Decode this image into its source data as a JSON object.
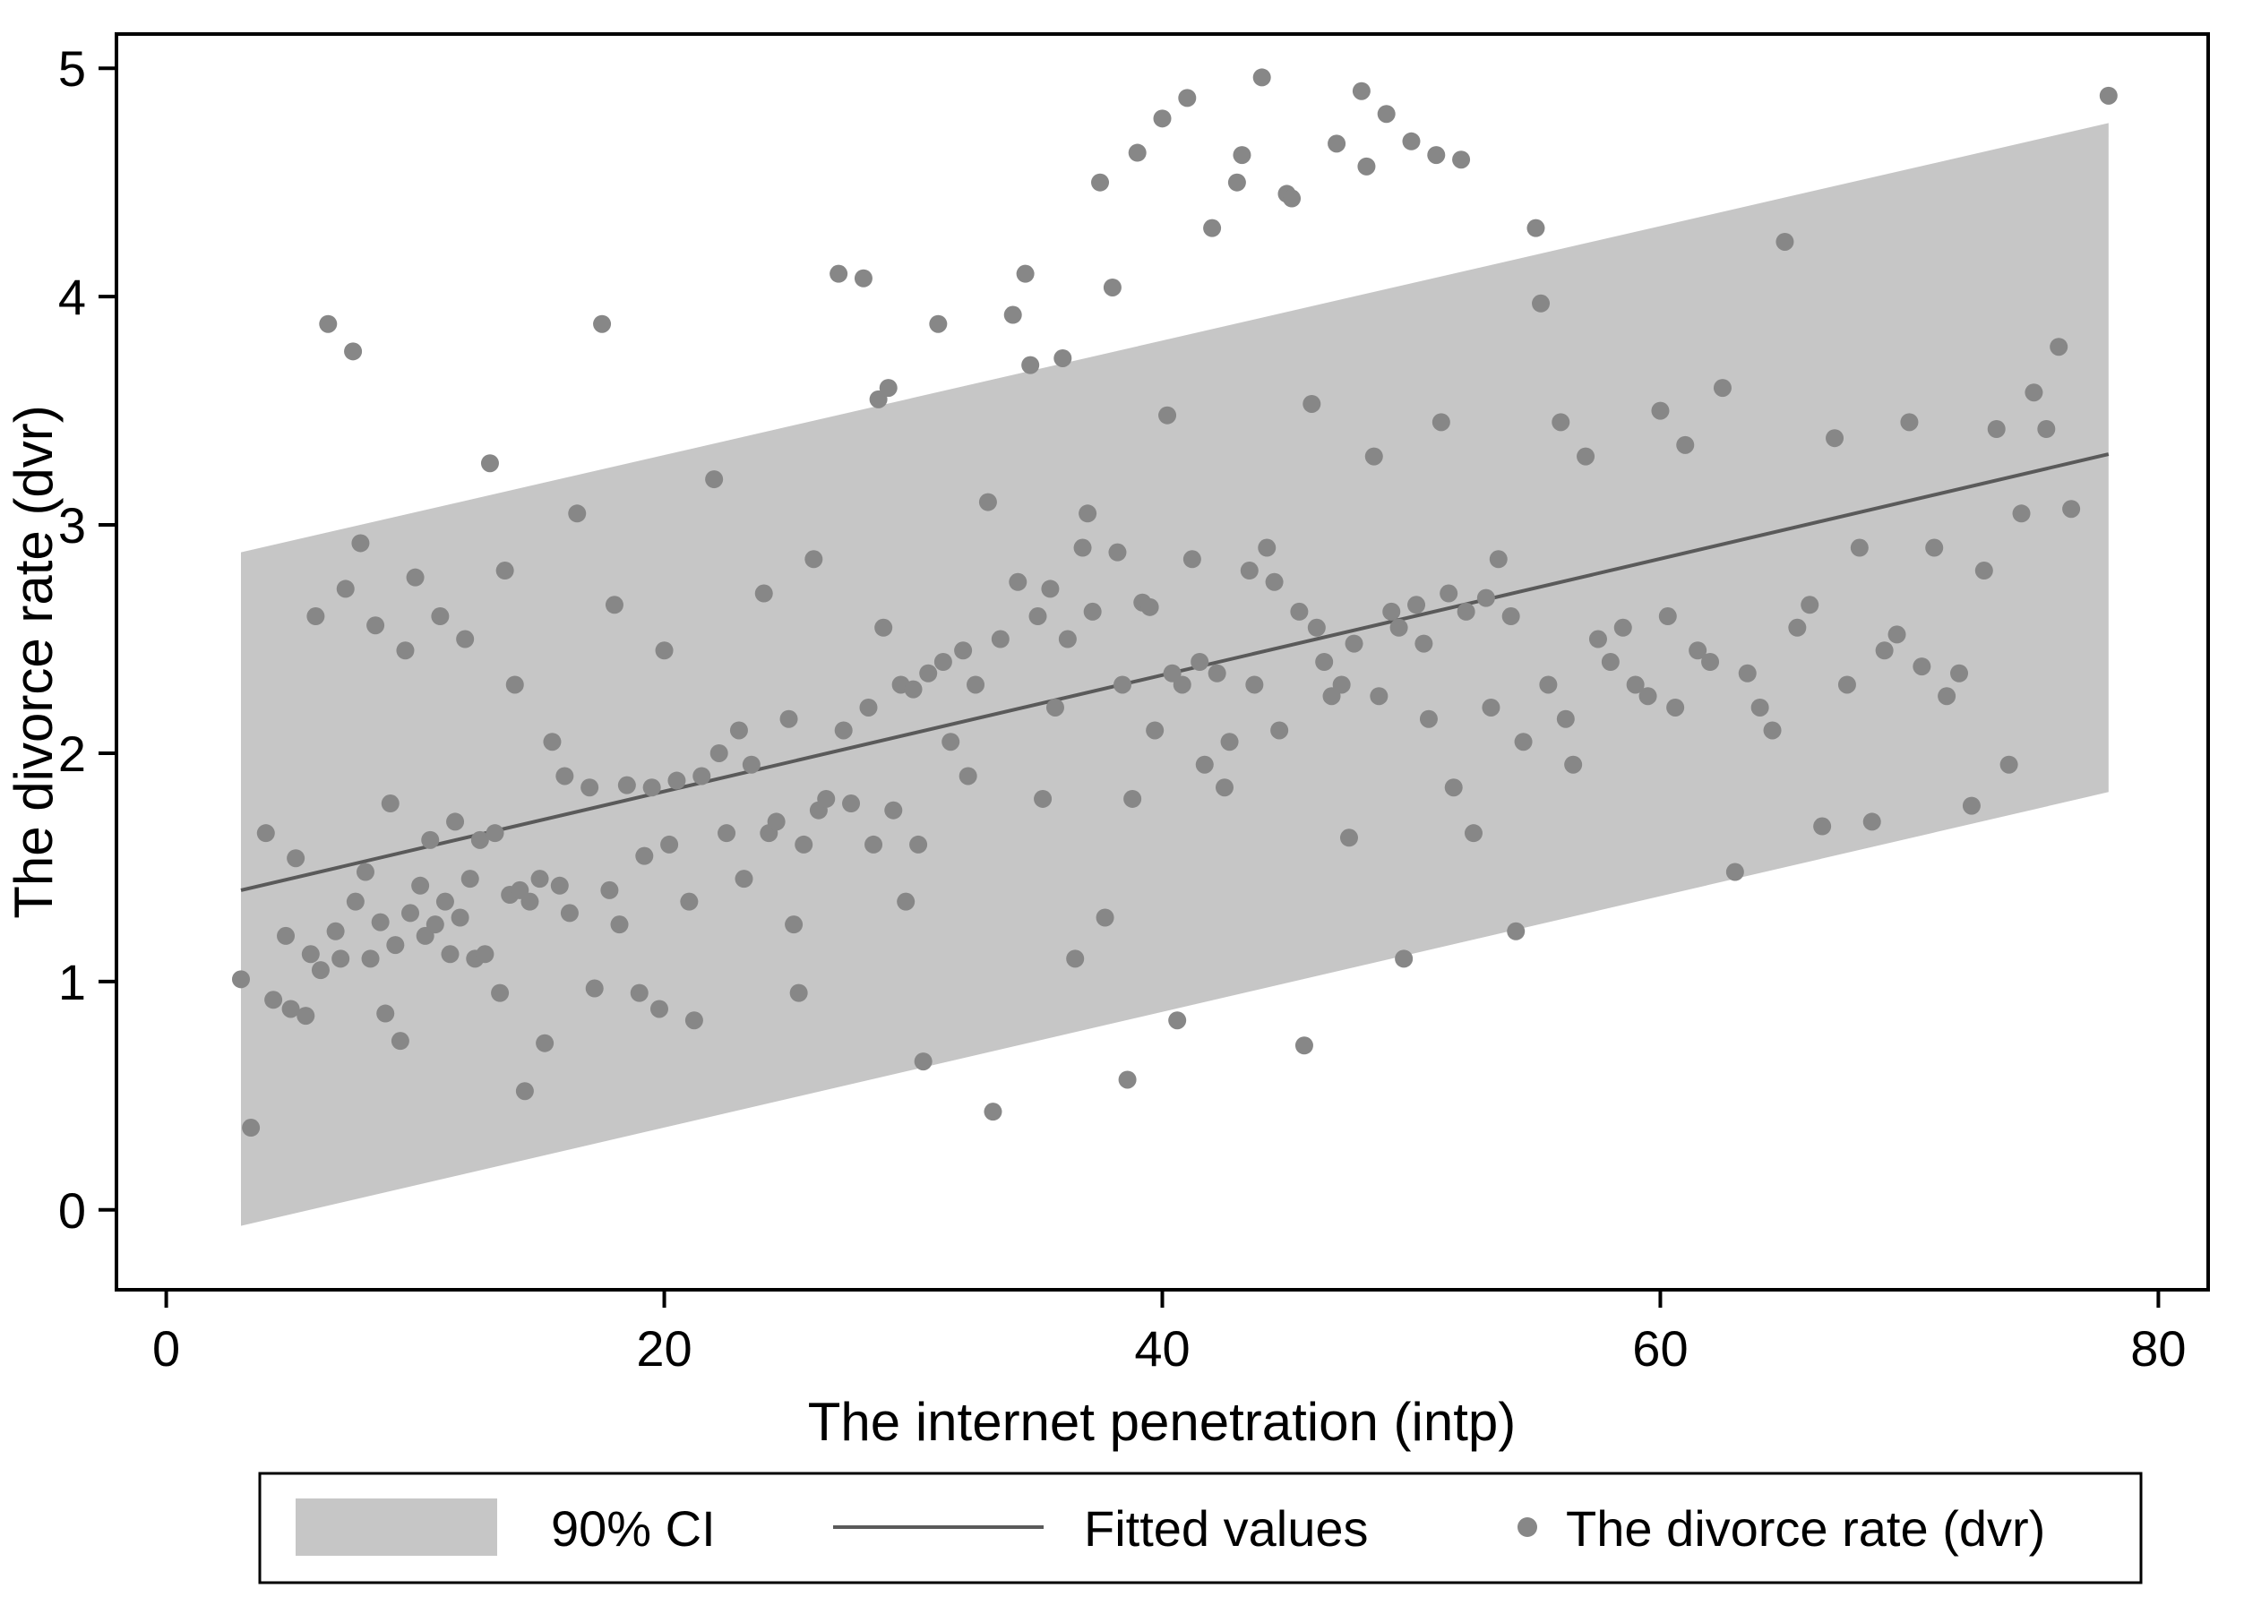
{
  "chart_data": {
    "type": "scatter",
    "title": "",
    "xlabel": "The internet penetration (intp)",
    "ylabel": "The divorce rate (dvr)",
    "xlim": [
      -2,
      82
    ],
    "ylim": [
      -0.35,
      5.15
    ],
    "x_ticks": [
      0,
      20,
      40,
      60,
      80
    ],
    "y_ticks": [
      0,
      1,
      2,
      3,
      4,
      5
    ],
    "grid": false,
    "legend_position": "bottom",
    "colors": {
      "ci_band": "#c6c6c6",
      "fitted_line": "#5a5a5a",
      "points": "#878787",
      "frame": "#000000"
    },
    "ci_band": {
      "label": "90% CI",
      "x": [
        3,
        78
      ],
      "upper": [
        2.88,
        4.76
      ],
      "lower": [
        -0.07,
        1.83
      ]
    },
    "fitted": {
      "label": "Fitted values",
      "x": [
        3,
        78
      ],
      "y": [
        1.4,
        3.31
      ]
    },
    "points_label": "The divorce rate (dvr)",
    "points": [
      [
        3,
        1.01
      ],
      [
        3.4,
        0.36
      ],
      [
        4,
        1.65
      ],
      [
        4.3,
        0.92
      ],
      [
        4.8,
        1.2
      ],
      [
        5,
        0.88
      ],
      [
        5.2,
        1.54
      ],
      [
        5.6,
        0.85
      ],
      [
        5.8,
        1.12
      ],
      [
        6,
        2.6
      ],
      [
        6.2,
        1.05
      ],
      [
        6.5,
        3.88
      ],
      [
        6.8,
        1.22
      ],
      [
        7,
        1.1
      ],
      [
        7.2,
        2.72
      ],
      [
        7.5,
        3.76
      ],
      [
        7.6,
        1.35
      ],
      [
        7.8,
        2.92
      ],
      [
        8,
        1.48
      ],
      [
        8.2,
        1.1
      ],
      [
        8.4,
        2.56
      ],
      [
        8.6,
        1.26
      ],
      [
        8.8,
        0.86
      ],
      [
        9,
        1.78
      ],
      [
        9.2,
        1.16
      ],
      [
        9.4,
        0.74
      ],
      [
        9.6,
        2.45
      ],
      [
        9.8,
        1.3
      ],
      [
        10,
        2.77
      ],
      [
        10.2,
        1.42
      ],
      [
        10.4,
        1.2
      ],
      [
        10.6,
        1.62
      ],
      [
        10.8,
        1.25
      ],
      [
        11,
        2.6
      ],
      [
        11.2,
        1.35
      ],
      [
        11.4,
        1.12
      ],
      [
        11.6,
        1.7
      ],
      [
        11.8,
        1.28
      ],
      [
        12,
        2.5
      ],
      [
        12.2,
        1.45
      ],
      [
        12.4,
        1.1
      ],
      [
        12.6,
        1.62
      ],
      [
        12.8,
        1.12
      ],
      [
        13,
        3.27
      ],
      [
        13.2,
        1.65
      ],
      [
        13.4,
        0.95
      ],
      [
        13.6,
        2.8
      ],
      [
        13.8,
        1.38
      ],
      [
        14,
        2.3
      ],
      [
        14.2,
        1.4
      ],
      [
        14.4,
        0.52
      ],
      [
        14.6,
        1.35
      ],
      [
        15,
        1.45
      ],
      [
        15.2,
        0.73
      ],
      [
        15.5,
        2.05
      ],
      [
        15.8,
        1.42
      ],
      [
        16,
        1.9
      ],
      [
        16.2,
        1.3
      ],
      [
        16.5,
        3.05
      ],
      [
        17,
        1.85
      ],
      [
        17.2,
        0.97
      ],
      [
        17.5,
        3.88
      ],
      [
        17.8,
        1.4
      ],
      [
        18,
        2.65
      ],
      [
        18.2,
        1.25
      ],
      [
        18.5,
        1.86
      ],
      [
        19,
        0.95
      ],
      [
        19.2,
        1.55
      ],
      [
        19.5,
        1.85
      ],
      [
        19.8,
        0.88
      ],
      [
        20,
        2.45
      ],
      [
        20.2,
        1.6
      ],
      [
        20.5,
        1.88
      ],
      [
        21,
        1.35
      ],
      [
        21.2,
        0.83
      ],
      [
        21.5,
        1.9
      ],
      [
        22,
        3.2
      ],
      [
        22.2,
        2.0
      ],
      [
        22.5,
        1.65
      ],
      [
        23,
        2.1
      ],
      [
        23.2,
        1.45
      ],
      [
        23.5,
        1.95
      ],
      [
        24,
        2.7
      ],
      [
        24.2,
        1.65
      ],
      [
        24.5,
        1.7
      ],
      [
        25,
        2.15
      ],
      [
        25.2,
        1.25
      ],
      [
        25.4,
        0.95
      ],
      [
        25.6,
        1.6
      ],
      [
        26,
        2.85
      ],
      [
        26.2,
        1.75
      ],
      [
        26.5,
        1.8
      ],
      [
        27,
        4.1
      ],
      [
        27.2,
        2.1
      ],
      [
        27.5,
        1.78
      ],
      [
        28,
        4.08
      ],
      [
        28.2,
        2.2
      ],
      [
        28.4,
        1.6
      ],
      [
        28.6,
        3.55
      ],
      [
        28.8,
        2.55
      ],
      [
        29,
        3.6
      ],
      [
        29.2,
        1.75
      ],
      [
        29.5,
        2.3
      ],
      [
        29.7,
        1.35
      ],
      [
        30,
        2.28
      ],
      [
        30.2,
        1.6
      ],
      [
        30.4,
        0.65
      ],
      [
        30.6,
        2.35
      ],
      [
        31,
        3.88
      ],
      [
        31.2,
        2.4
      ],
      [
        31.5,
        2.05
      ],
      [
        32,
        2.45
      ],
      [
        32.2,
        1.9
      ],
      [
        32.5,
        2.3
      ],
      [
        33,
        3.1
      ],
      [
        33.2,
        0.43
      ],
      [
        33.5,
        2.5
      ],
      [
        34,
        3.92
      ],
      [
        34.2,
        2.75
      ],
      [
        34.5,
        4.1
      ],
      [
        34.7,
        3.7
      ],
      [
        35,
        2.6
      ],
      [
        35.2,
        1.8
      ],
      [
        35.5,
        2.72
      ],
      [
        35.7,
        2.2
      ],
      [
        36,
        3.73
      ],
      [
        36.2,
        2.5
      ],
      [
        36.5,
        1.1
      ],
      [
        36.8,
        2.9
      ],
      [
        37,
        3.05
      ],
      [
        37.2,
        2.62
      ],
      [
        37.5,
        4.5
      ],
      [
        37.7,
        1.28
      ],
      [
        38,
        4.04
      ],
      [
        38.2,
        2.88
      ],
      [
        38.4,
        2.3
      ],
      [
        38.6,
        0.57
      ],
      [
        38.8,
        1.8
      ],
      [
        39,
        4.63
      ],
      [
        39.2,
        2.66
      ],
      [
        39.5,
        2.64
      ],
      [
        39.7,
        2.1
      ],
      [
        40,
        4.78
      ],
      [
        40.2,
        3.48
      ],
      [
        40.4,
        2.35
      ],
      [
        40.6,
        0.83
      ],
      [
        40.8,
        2.3
      ],
      [
        41,
        4.87
      ],
      [
        41.2,
        2.85
      ],
      [
        41.5,
        2.4
      ],
      [
        41.7,
        1.95
      ],
      [
        42,
        4.3
      ],
      [
        42.2,
        2.35
      ],
      [
        42.5,
        1.85
      ],
      [
        42.7,
        2.05
      ],
      [
        43,
        4.5
      ],
      [
        43.2,
        4.62
      ],
      [
        43.5,
        2.8
      ],
      [
        43.7,
        2.3
      ],
      [
        44,
        4.96
      ],
      [
        44.2,
        2.9
      ],
      [
        44.5,
        2.75
      ],
      [
        44.7,
        2.1
      ],
      [
        45,
        4.45
      ],
      [
        45.2,
        4.43
      ],
      [
        45.5,
        2.62
      ],
      [
        45.7,
        0.72
      ],
      [
        46,
        3.53
      ],
      [
        46.2,
        2.55
      ],
      [
        46.5,
        2.4
      ],
      [
        46.8,
        2.25
      ],
      [
        47,
        4.67
      ],
      [
        47.2,
        2.3
      ],
      [
        47.5,
        1.63
      ],
      [
        47.7,
        2.48
      ],
      [
        48,
        4.9
      ],
      [
        48.2,
        4.57
      ],
      [
        48.5,
        3.3
      ],
      [
        48.7,
        2.25
      ],
      [
        49,
        4.8
      ],
      [
        49.2,
        2.62
      ],
      [
        49.5,
        2.55
      ],
      [
        49.7,
        1.1
      ],
      [
        50,
        4.68
      ],
      [
        50.2,
        2.65
      ],
      [
        50.5,
        2.48
      ],
      [
        50.7,
        2.15
      ],
      [
        51,
        4.62
      ],
      [
        51.2,
        3.45
      ],
      [
        51.5,
        2.7
      ],
      [
        51.7,
        1.85
      ],
      [
        52,
        4.6
      ],
      [
        52.2,
        2.62
      ],
      [
        52.5,
        1.65
      ],
      [
        53,
        2.68
      ],
      [
        53.2,
        2.2
      ],
      [
        53.5,
        2.85
      ],
      [
        54,
        2.6
      ],
      [
        54.2,
        1.22
      ],
      [
        54.5,
        2.05
      ],
      [
        55,
        4.3
      ],
      [
        55.2,
        3.97
      ],
      [
        55.5,
        2.3
      ],
      [
        56,
        3.45
      ],
      [
        56.2,
        2.15
      ],
      [
        56.5,
        1.95
      ],
      [
        57,
        3.3
      ],
      [
        57.5,
        2.5
      ],
      [
        58,
        2.4
      ],
      [
        58.5,
        2.55
      ],
      [
        59,
        2.3
      ],
      [
        59.5,
        2.25
      ],
      [
        60,
        3.5
      ],
      [
        60.3,
        2.6
      ],
      [
        60.6,
        2.2
      ],
      [
        61,
        3.35
      ],
      [
        61.5,
        2.45
      ],
      [
        62,
        2.4
      ],
      [
        62.5,
        3.6
      ],
      [
        63,
        1.48
      ],
      [
        63.5,
        2.35
      ],
      [
        64,
        2.2
      ],
      [
        64.5,
        2.1
      ],
      [
        65,
        4.24
      ],
      [
        65.5,
        2.55
      ],
      [
        66,
        2.65
      ],
      [
        66.5,
        1.68
      ],
      [
        67,
        3.38
      ],
      [
        67.5,
        2.3
      ],
      [
        68,
        2.9
      ],
      [
        68.5,
        1.7
      ],
      [
        69,
        2.45
      ],
      [
        69.5,
        2.52
      ],
      [
        70,
        3.45
      ],
      [
        70.5,
        2.38
      ],
      [
        71,
        2.9
      ],
      [
        71.5,
        2.25
      ],
      [
        72,
        2.35
      ],
      [
        72.5,
        1.77
      ],
      [
        73,
        2.8
      ],
      [
        73.5,
        3.42
      ],
      [
        74,
        1.95
      ],
      [
        74.5,
        3.05
      ],
      [
        75,
        3.58
      ],
      [
        75.5,
        3.42
      ],
      [
        76,
        3.78
      ],
      [
        76.5,
        3.07
      ],
      [
        78,
        4.88
      ]
    ],
    "legend": [
      {
        "label": "90% CI",
        "type": "band"
      },
      {
        "label": "Fitted values",
        "type": "line"
      },
      {
        "label": "The divorce rate (dvr)",
        "type": "point"
      }
    ]
  }
}
